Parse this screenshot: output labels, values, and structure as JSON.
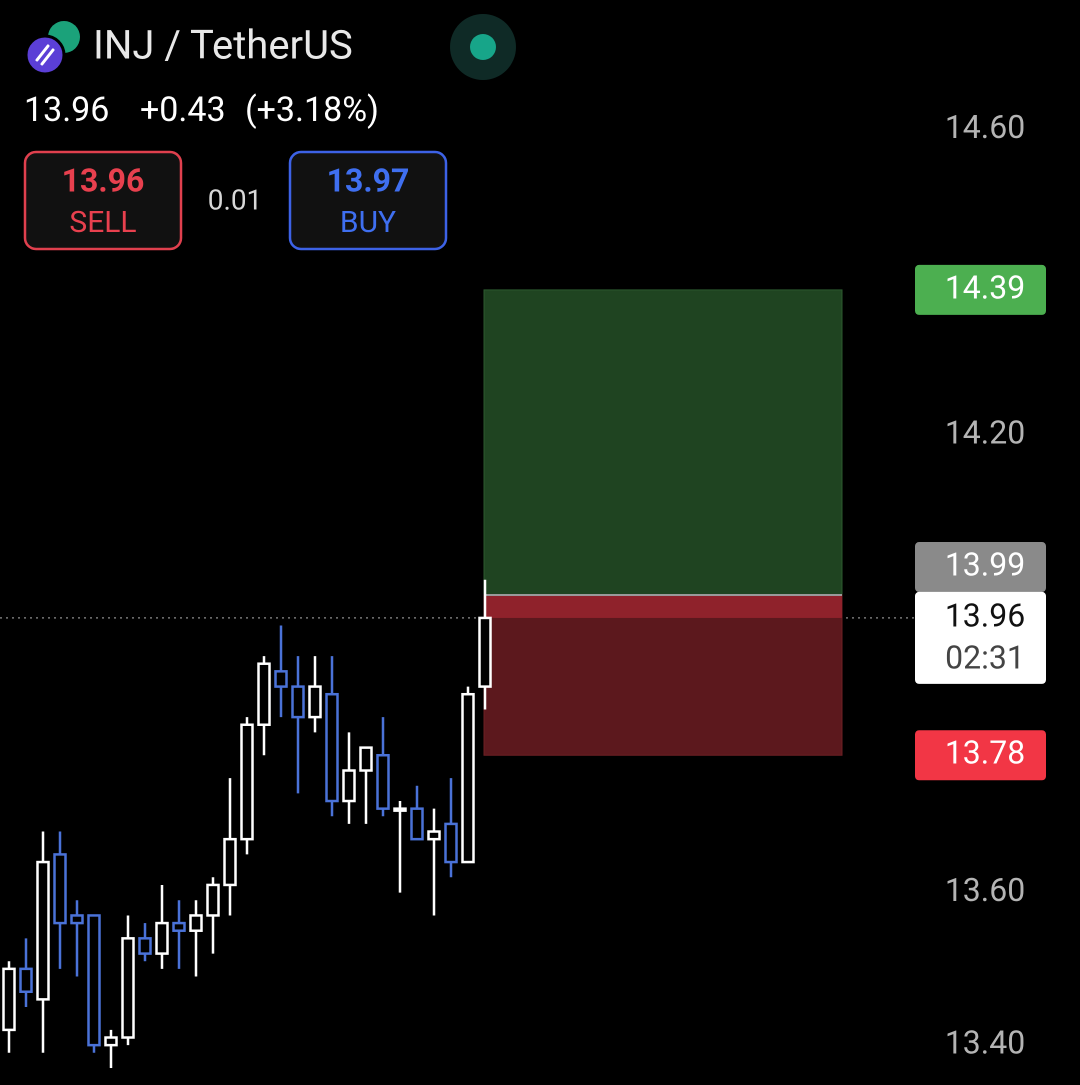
{
  "header": {
    "symbol": "INJ / TetherUS",
    "last": "13.96",
    "change": "+0.43",
    "change_pct": "(+3.18%)",
    "sell_price": "13.96",
    "sell_label": "SELL",
    "spread": "0.01",
    "buy_price": "13.97",
    "buy_label": "BUY"
  },
  "chart_data": {
    "type": "candlestick",
    "up_color": "#ffffff",
    "down_color": "#4a72d8",
    "ylim": [
      13.353,
      14.77
    ],
    "yticks": [
      {
        "value": 14.6,
        "label": "14.60"
      },
      {
        "value": 14.2,
        "label": "14.20"
      },
      {
        "value": 13.6,
        "label": "13.60"
      },
      {
        "value": 13.4,
        "label": "13.40"
      }
    ],
    "open": [
      13.42,
      13.5,
      13.46,
      13.65,
      13.57,
      13.57,
      13.4,
      13.41,
      13.54,
      13.52,
      13.56,
      13.55,
      13.57,
      13.61,
      13.67,
      13.82,
      13.89,
      13.87,
      13.83,
      13.86,
      13.72,
      13.76,
      13.78,
      13.71,
      13.71,
      13.67,
      13.69,
      13.64,
      13.87
    ],
    "high": [
      13.51,
      13.54,
      13.68,
      13.68,
      13.59,
      13.57,
      13.42,
      13.57,
      13.56,
      13.61,
      13.59,
      13.59,
      13.62,
      13.75,
      13.83,
      13.91,
      13.95,
      13.91,
      13.91,
      13.91,
      13.81,
      13.79,
      13.83,
      13.72,
      13.74,
      13.71,
      13.75,
      13.87,
      14.01
    ],
    "low": [
      13.39,
      13.45,
      13.39,
      13.5,
      13.49,
      13.39,
      13.37,
      13.4,
      13.51,
      13.5,
      13.5,
      13.49,
      13.52,
      13.57,
      13.65,
      13.78,
      13.83,
      13.73,
      13.81,
      13.7,
      13.69,
      13.69,
      13.7,
      13.6,
      13.67,
      13.57,
      13.62,
      13.64,
      13.84
    ],
    "close": [
      13.5,
      13.47,
      13.64,
      13.56,
      13.56,
      13.4,
      13.41,
      13.54,
      13.52,
      13.56,
      13.55,
      13.57,
      13.61,
      13.67,
      13.82,
      13.9,
      13.87,
      13.83,
      13.87,
      13.72,
      13.76,
      13.79,
      13.71,
      13.71,
      13.67,
      13.68,
      13.64,
      13.86,
      13.96
    ],
    "last_price": 13.96,
    "countdown": "02:31",
    "position": {
      "target": 14.39,
      "entry": 13.99,
      "stop": 13.78,
      "target_color": "#4caf50",
      "entry_color": "#8a8a8a",
      "stop_color": "#f23645"
    }
  }
}
